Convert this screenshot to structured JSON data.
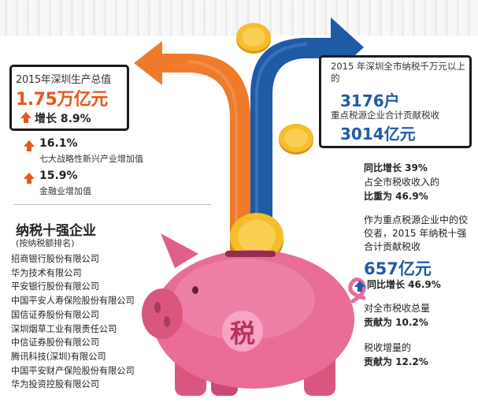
{
  "gdp": {
    "title": "2015年深圳生产总值",
    "value": "1.75万亿元",
    "growth": "增长 8.9%"
  },
  "industry_stats": [
    {
      "value": "16.1%",
      "label": "七大战略性新兴产业增加值"
    },
    {
      "value": "15.9%",
      "label": "金融业增加值"
    }
  ],
  "top_taxpayers": {
    "title": "纳税十强企业",
    "subtitle": "(按纳税额排名)",
    "companies": [
      "招商银行股份有限公司",
      "华为技术有限公司",
      "平安银行股份有限公司",
      "中国平安人寿保险股份有限公司",
      "国信证券股份有限公司",
      "深圳烟草工业有限责任公司",
      "中信证券股份有限公司",
      "腾讯科技(深圳)有限公司",
      "中国平安财产保险股份有限公司",
      "华为投资控股有限公司"
    ]
  },
  "tax_box": {
    "line1": "2015 年深圳全市纳税千万元以上的",
    "households": "3176户",
    "line2": "重点税源企业合计贡献税收",
    "amount": "3014亿元"
  },
  "right_stats": {
    "growth_a": "同比增长 39%",
    "share_label": "占全市税收收入的",
    "share_value": "比重为 46.9%",
    "desc": "作为重点税源企业中的佼佼者，2015 年纳税十强合计贡献税收",
    "top10_amount": "657亿元",
    "growth_b": "同比增长 46.9%",
    "contrib_total_label": "对全市税收总量",
    "contrib_total_value": "贡献为 10.2%",
    "contrib_incr_label": "税收增量的",
    "contrib_incr_value": "贡献为 12.2%"
  },
  "piggy": {
    "label": "税"
  },
  "colors": {
    "orange": "#e8561c",
    "blue": "#1f5aa6",
    "pink": "#e96b97",
    "gold": "#f2b417"
  }
}
